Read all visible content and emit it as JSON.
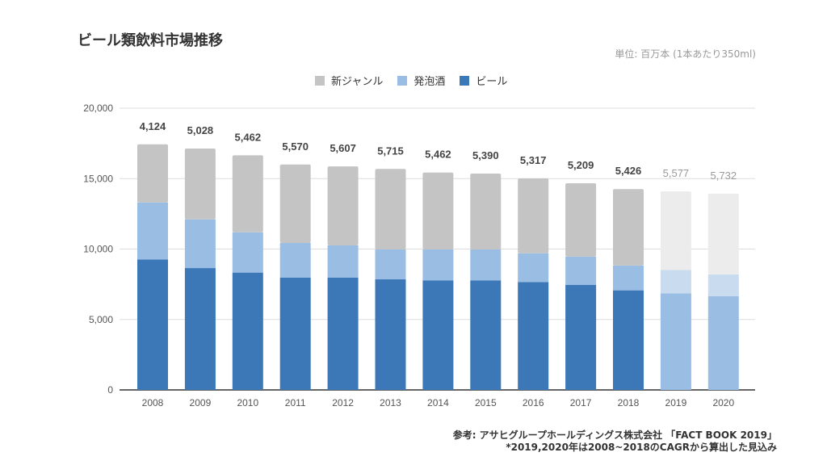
{
  "chart_data": {
    "type": "bar",
    "stacked": true,
    "title": "ビール類飲料市場推移",
    "unit_note": "単位: 百万本 (1本あたり350ml)",
    "categories": [
      "2008",
      "2009",
      "2010",
      "2011",
      "2012",
      "2013",
      "2014",
      "2015",
      "2016",
      "2017",
      "2018",
      "2019",
      "2020"
    ],
    "forecast_categories": [
      "2019",
      "2020"
    ],
    "series": [
      {
        "name": "ビール",
        "color": "#3c78b8",
        "forecast_color": "#9abde3",
        "values": [
          9260,
          8650,
          8330,
          7980,
          7980,
          7850,
          7780,
          7780,
          7660,
          7450,
          7070,
          6860,
          6650
        ]
      },
      {
        "name": "発泡酒",
        "color": "#9abde3",
        "forecast_color": "#c8dbef",
        "values": [
          4050,
          3460,
          2860,
          2450,
          2280,
          2120,
          2190,
          2190,
          2040,
          2010,
          1760,
          1660,
          1550
        ]
      },
      {
        "name": "新ジャンル",
        "color": "#c4c4c4",
        "forecast_color": "#ececec",
        "values": [
          4124,
          5028,
          5462,
          5570,
          5607,
          5715,
          5462,
          5390,
          5317,
          5209,
          5426,
          5577,
          5732
        ]
      }
    ],
    "data_labels": [
      "4,124",
      "5,028",
      "5,462",
      "5,570",
      "5,607",
      "5,715",
      "5,462",
      "5,390",
      "5,317",
      "5,209",
      "5,426",
      "5,577",
      "5,732"
    ],
    "ylim": [
      0,
      20000
    ],
    "yticks": [
      0,
      5000,
      10000,
      15000,
      20000
    ],
    "ytick_labels": [
      "0",
      "5,000",
      "10,000",
      "15,000",
      "20,000"
    ],
    "grid": true,
    "legend_order": [
      "新ジャンル",
      "発泡酒",
      "ビール"
    ],
    "legend_placement": "top",
    "xlabel": "",
    "ylabel": ""
  },
  "source": {
    "line1": "参考: アサヒグループホールディングス株式会社 「FACT BOOK 2019」",
    "line2": "*2019,2020年は2008~2018のCAGRから算出した見込み"
  }
}
